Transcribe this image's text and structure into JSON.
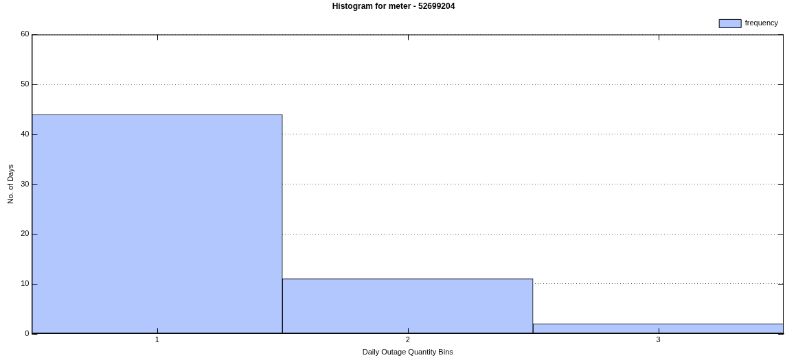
{
  "chart_data": {
    "type": "histogram",
    "title": "Histogram for meter - 52699204",
    "xlabel": "Daily Outage Quantity Bins",
    "ylabel": "No. of Days",
    "bins": [
      0.5,
      1.5,
      2.5,
      3.5
    ],
    "series": [
      {
        "name": "frequency",
        "color": "#b3c7ff",
        "values": [
          44,
          11,
          2
        ]
      }
    ],
    "xlim": [
      0.5,
      3.5
    ],
    "xticks": [
      1,
      2,
      3
    ],
    "ylim": [
      0,
      60
    ],
    "yticks": [
      0,
      10,
      20,
      30,
      40,
      50,
      60
    ],
    "grid": "y",
    "legend": "top right"
  }
}
